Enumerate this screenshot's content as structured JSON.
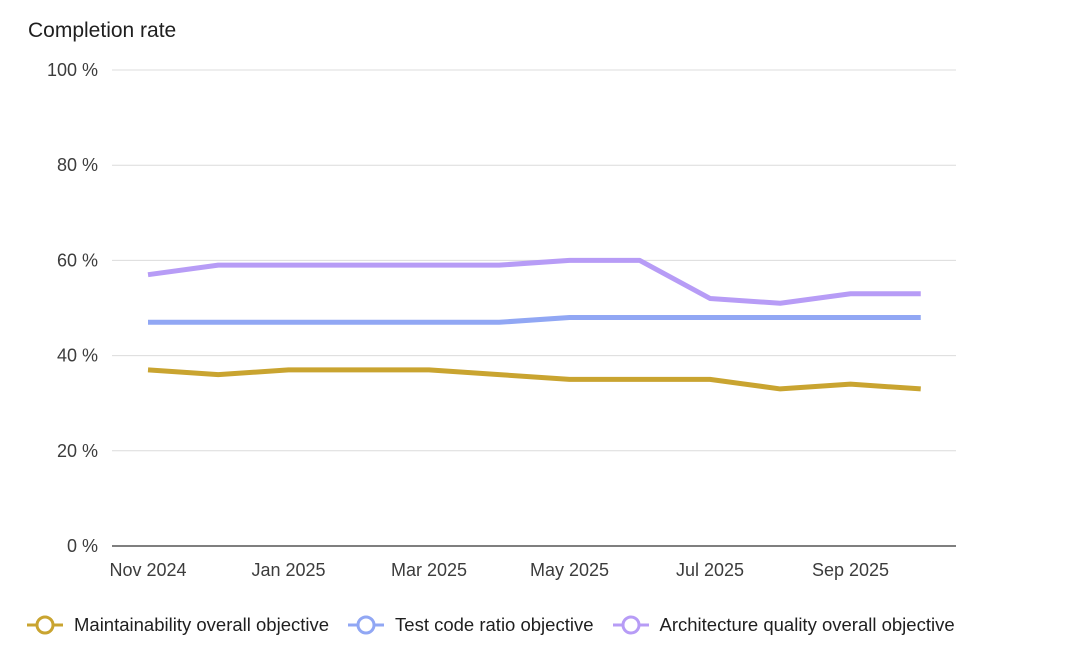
{
  "chart_data": {
    "type": "line",
    "title": "Completion rate",
    "x": [
      "Nov 2024",
      "Dec 2024",
      "Jan 2025",
      "Feb 2025",
      "Mar 2025",
      "Apr 2025",
      "May 2025",
      "Jun 2025",
      "Jul 2025",
      "Aug 2025",
      "Sep 2025",
      "Oct 2025"
    ],
    "x_tick_labels": [
      "Nov 2024",
      "Jan 2025",
      "Mar 2025",
      "May 2025",
      "Jul 2025",
      "Sep 2025"
    ],
    "y_tick_labels": [
      "0 %",
      "20 %",
      "40 %",
      "60 %",
      "80 %",
      "100 %"
    ],
    "y_ticks": [
      0,
      20,
      40,
      60,
      80,
      100
    ],
    "ylim": [
      0,
      100
    ],
    "xlabel": "",
    "ylabel": "",
    "grid": true,
    "legend_position": "bottom",
    "series": [
      {
        "name": "Maintainability overall objective",
        "color": "#c9a430",
        "values": [
          37,
          36,
          37,
          37,
          37,
          36,
          35,
          35,
          35,
          33,
          34,
          33
        ]
      },
      {
        "name": "Test code ratio objective",
        "color": "#91a7f4",
        "values": [
          47,
          47,
          47,
          47,
          47,
          47,
          48,
          48,
          48,
          48,
          48,
          48
        ]
      },
      {
        "name": "Architecture quality overall objective",
        "color": "#b79cf6",
        "values": [
          57,
          59,
          59,
          59,
          59,
          59,
          60,
          60,
          52,
          51,
          53,
          53
        ]
      }
    ]
  }
}
